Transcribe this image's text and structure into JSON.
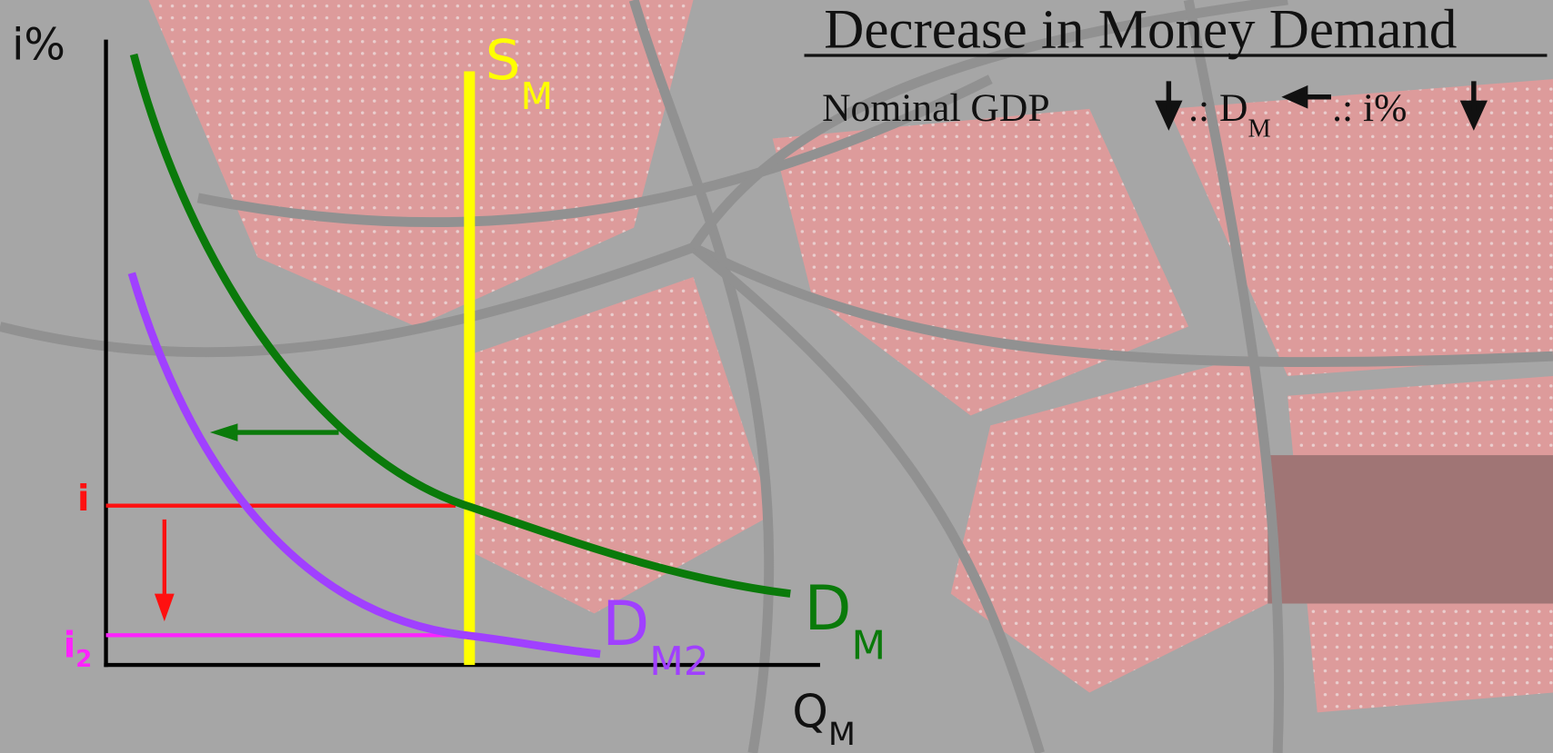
{
  "title": "Decrease in Money Demand",
  "explanation": {
    "lead": "Nominal GDP",
    "demand": ".: D",
    "demand_sub": "M",
    "rate": ".: i%"
  },
  "axes": {
    "y": "i%",
    "x": "Q",
    "x_sub": "M"
  },
  "curves": {
    "supply": {
      "label": "S",
      "sub": "M"
    },
    "demand": {
      "label": "D",
      "sub": "M"
    },
    "demand2": {
      "label": "D",
      "sub": "M2"
    }
  },
  "rates": {
    "i": "i",
    "i2": "i",
    "i2_sub": "2"
  }
}
